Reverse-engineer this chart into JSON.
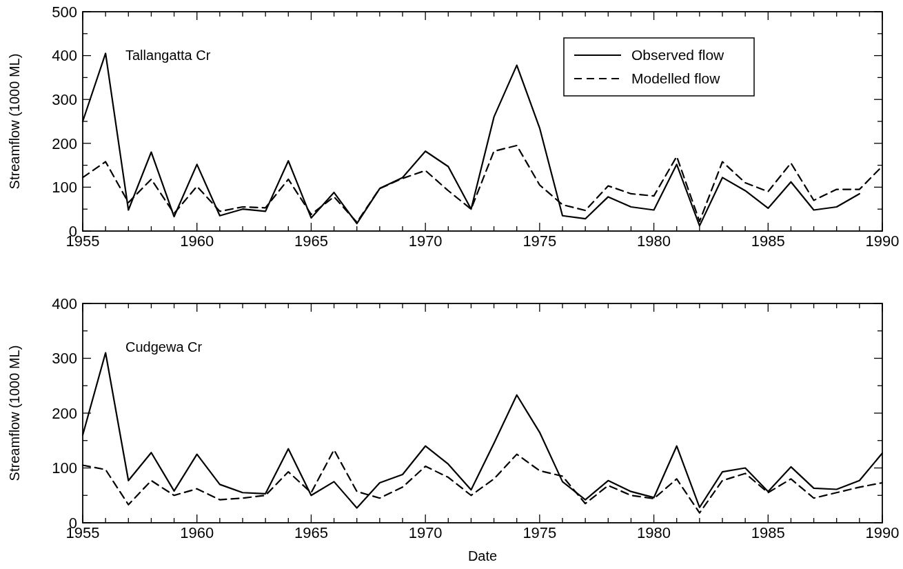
{
  "chart_data": [
    {
      "type": "line",
      "title": "Tallangatta Cr",
      "ylabel": "Streamflow (1000 ML)",
      "legend": "top right",
      "grid": false,
      "marker": "none",
      "x": [
        1955,
        1956,
        1957,
        1958,
        1959,
        1960,
        1961,
        1962,
        1963,
        1964,
        1965,
        1966,
        1967,
        1968,
        1969,
        1970,
        1971,
        1972,
        1973,
        1974,
        1975,
        1976,
        1977,
        1978,
        1979,
        1980,
        1981,
        1982,
        1983,
        1984,
        1985,
        1986,
        1987,
        1988,
        1989,
        1990
      ],
      "series": [
        {
          "name": "Observed flow",
          "color": "#000000",
          "line_style": "solid",
          "values": [
            250,
            405,
            48,
            180,
            33,
            152,
            35,
            50,
            45,
            160,
            30,
            88,
            17,
            97,
            122,
            182,
            147,
            50,
            260,
            378,
            235,
            35,
            28,
            78,
            55,
            48,
            152,
            12,
            122,
            92,
            52,
            112,
            48,
            55,
            85,
            null
          ]
        },
        {
          "name": "Modelled flow",
          "color": "#000000",
          "line_style": "dashed",
          "values": [
            122,
            158,
            65,
            118,
            40,
            102,
            45,
            55,
            53,
            118,
            38,
            78,
            20,
            97,
            120,
            138,
            92,
            50,
            182,
            195,
            105,
            60,
            47,
            103,
            85,
            80,
            170,
            22,
            158,
            110,
            90,
            155,
            70,
            95,
            95,
            148
          ]
        }
      ],
      "xlim": [
        1955,
        1990
      ],
      "xticks": [
        1955,
        {
          "value": 1956,
          "label": null
        },
        {
          "value": 1957,
          "label": null
        },
        {
          "value": 1958,
          "label": null
        },
        {
          "value": 1959,
          "label": null
        },
        1960,
        {
          "value": 1961,
          "label": null
        },
        {
          "value": 1962,
          "label": null
        },
        {
          "value": 1963,
          "label": null
        },
        {
          "value": 1964,
          "label": null
        },
        1965,
        {
          "value": 1966,
          "label": null
        },
        {
          "value": 1967,
          "label": null
        },
        {
          "value": 1968,
          "label": null
        },
        {
          "value": 1969,
          "label": null
        },
        1970,
        {
          "value": 1971,
          "label": null
        },
        {
          "value": 1972,
          "label": null
        },
        {
          "value": 1973,
          "label": null
        },
        {
          "value": 1974,
          "label": null
        },
        1975,
        {
          "value": 1976,
          "label": null
        },
        {
          "value": 1977,
          "label": null
        },
        {
          "value": 1978,
          "label": null
        },
        {
          "value": 1979,
          "label": null
        },
        1980,
        {
          "value": 1981,
          "label": null
        },
        {
          "value": 1982,
          "label": null
        },
        {
          "value": 1983,
          "label": null
        },
        {
          "value": 1984,
          "label": null
        },
        1985,
        {
          "value": 1986,
          "label": null
        },
        {
          "value": 1987,
          "label": null
        },
        {
          "value": 1988,
          "label": null
        },
        {
          "value": 1989,
          "label": null
        },
        1990
      ],
      "ylim": [
        0,
        500
      ],
      "yticks": [
        0,
        {
          "value": 50,
          "label": null
        },
        100,
        {
          "value": 150,
          "label": null
        },
        200,
        {
          "value": 250,
          "label": null
        },
        300,
        {
          "value": 350,
          "label": null
        },
        400,
        {
          "value": 450,
          "label": null
        },
        500
      ]
    },
    {
      "type": "line",
      "title": "Cudgewa Cr",
      "xlabel": "Date",
      "ylabel": "Streamflow (1000 ML)",
      "grid": false,
      "marker": "none",
      "x": [
        1955,
        1956,
        1957,
        1958,
        1959,
        1960,
        1961,
        1962,
        1963,
        1964,
        1965,
        1966,
        1967,
        1968,
        1969,
        1970,
        1971,
        1972,
        1973,
        1974,
        1975,
        1976,
        1977,
        1978,
        1979,
        1980,
        1981,
        1982,
        1983,
        1984,
        1985,
        1986,
        1987,
        1988,
        1989,
        1990
      ],
      "series": [
        {
          "color": "#000000",
          "line_style": "solid",
          "values": [
            160,
            310,
            77,
            128,
            58,
            125,
            70,
            55,
            53,
            135,
            50,
            75,
            27,
            73,
            88,
            140,
            107,
            60,
            145,
            233,
            165,
            75,
            42,
            77,
            57,
            46,
            140,
            28,
            93,
            100,
            57,
            102,
            63,
            61,
            77,
            127
          ]
        },
        {
          "color": "#000000",
          "line_style": "dashed",
          "values": [
            105,
            97,
            33,
            77,
            50,
            62,
            42,
            45,
            50,
            93,
            55,
            133,
            57,
            45,
            65,
            103,
            83,
            50,
            80,
            125,
            95,
            85,
            35,
            68,
            50,
            44,
            80,
            18,
            77,
            90,
            55,
            80,
            45,
            55,
            65,
            73
          ]
        }
      ],
      "xlim": [
        1955,
        1990
      ],
      "xticks": [
        1955,
        {
          "value": 1956,
          "label": null
        },
        {
          "value": 1957,
          "label": null
        },
        {
          "value": 1958,
          "label": null
        },
        {
          "value": 1959,
          "label": null
        },
        1960,
        {
          "value": 1961,
          "label": null
        },
        {
          "value": 1962,
          "label": null
        },
        {
          "value": 1963,
          "label": null
        },
        {
          "value": 1964,
          "label": null
        },
        1965,
        {
          "value": 1966,
          "label": null
        },
        {
          "value": 1967,
          "label": null
        },
        {
          "value": 1968,
          "label": null
        },
        {
          "value": 1969,
          "label": null
        },
        1970,
        {
          "value": 1971,
          "label": null
        },
        {
          "value": 1972,
          "label": null
        },
        {
          "value": 1973,
          "label": null
        },
        {
          "value": 1974,
          "label": null
        },
        1975,
        {
          "value": 1976,
          "label": null
        },
        {
          "value": 1977,
          "label": null
        },
        {
          "value": 1978,
          "label": null
        },
        {
          "value": 1979,
          "label": null
        },
        1980,
        {
          "value": 1981,
          "label": null
        },
        {
          "value": 1982,
          "label": null
        },
        {
          "value": 1983,
          "label": null
        },
        {
          "value": 1984,
          "label": null
        },
        1985,
        {
          "value": 1986,
          "label": null
        },
        {
          "value": 1987,
          "label": null
        },
        {
          "value": 1988,
          "label": null
        },
        {
          "value": 1989,
          "label": null
        },
        1990
      ],
      "ylim": [
        0,
        400
      ],
      "yticks": [
        0,
        {
          "value": 50,
          "label": null
        },
        100,
        {
          "value": 150,
          "label": null
        },
        200,
        {
          "value": 250,
          "label": null
        },
        300,
        {
          "value": 350,
          "label": null
        },
        400
      ]
    }
  ]
}
